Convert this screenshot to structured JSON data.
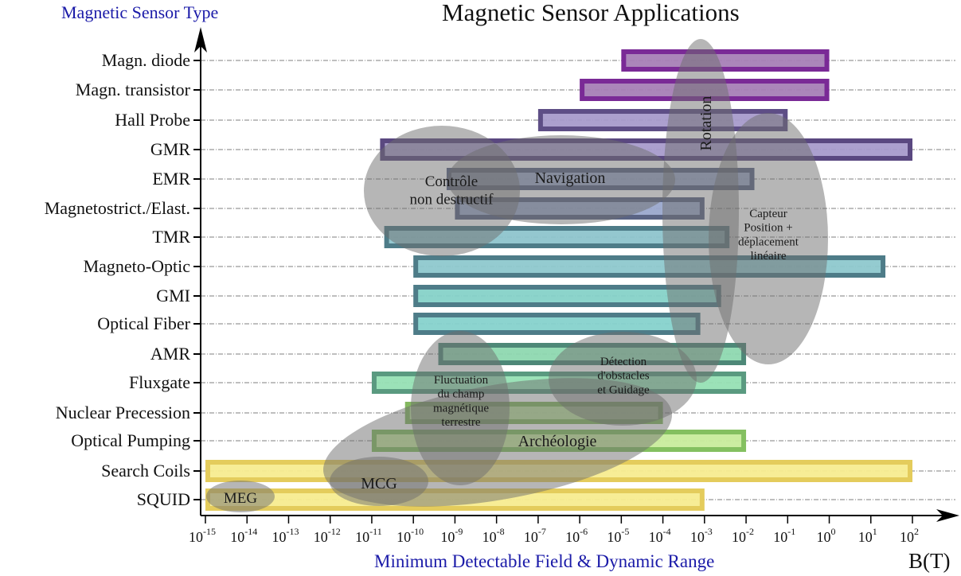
{
  "chart_data": {
    "type": "bar",
    "subtype": "floating-range-horizontal-log",
    "title": "Magnetic Sensor Applications",
    "ylabel": "Magnetic Sensor Type",
    "xlabel": "Minimum Detectable Field & Dynamic Range",
    "x_unit": "B(T)",
    "x_scale": "log10",
    "xlim_exponent": [
      -15,
      2
    ],
    "x_tick_exponents": [
      -15,
      -14,
      -13,
      -12,
      -11,
      -10,
      -9,
      -8,
      -7,
      -6,
      -5,
      -4,
      -3,
      -2,
      -1,
      0,
      1,
      2
    ],
    "grid": "horizontal dash-dot lines at each sensor row",
    "categories": [
      "Magn. diode",
      "Magn. transistor",
      "Hall Probe",
      "GMR",
      "EMR",
      "Magnetostrict./Elast.",
      "TMR",
      "Magneto-Optic",
      "GMI",
      "Optical Fiber",
      "AMR",
      "Fluxgate",
      "Nuclear Precession",
      "Optical Pumping",
      "Search Coils",
      "SQUID"
    ],
    "series": [
      {
        "name": "Magn. diode",
        "range_log10": [
          -5,
          0
        ],
        "fill": "#a67fb6",
        "stroke": "#7a2a96"
      },
      {
        "name": "Magn. transistor",
        "range_log10": [
          -6,
          0
        ],
        "fill": "#a67fb6",
        "stroke": "#7a2a96"
      },
      {
        "name": "Hall Probe",
        "range_log10": [
          -7,
          -1
        ],
        "fill": "#a89bcb",
        "stroke": "#5e4e86"
      },
      {
        "name": "GMR",
        "range_log10": [
          -10.8,
          2
        ],
        "fill": "#a89bcb",
        "stroke": "#5a4880"
      },
      {
        "name": "EMR",
        "range_log10": [
          -9.2,
          -1.8
        ],
        "fill": "#9aa6c8",
        "stroke": "#5a6484"
      },
      {
        "name": "Magnetostrict./Elast.",
        "range_log10": [
          -9,
          -3
        ],
        "fill": "#9aa8cc",
        "stroke": "#5a6484"
      },
      {
        "name": "TMR",
        "range_log10": [
          -10.7,
          -2.4
        ],
        "fill": "#8ec4cc",
        "stroke": "#4e7c88"
      },
      {
        "name": "Magneto-Optic",
        "range_log10": [
          -10,
          1.35
        ],
        "fill": "#8ec8ce",
        "stroke": "#4e7c88"
      },
      {
        "name": "GMI",
        "range_log10": [
          -10,
          -2.6
        ],
        "fill": "#86d2c8",
        "stroke": "#4e7c88"
      },
      {
        "name": "Optical Fiber",
        "range_log10": [
          -10,
          -3.1
        ],
        "fill": "#86d2cc",
        "stroke": "#4e7c88"
      },
      {
        "name": "AMR",
        "range_log10": [
          -9.4,
          -2
        ],
        "fill": "#8ed8b0",
        "stroke": "#4e8878"
      },
      {
        "name": "Fluxgate",
        "range_log10": [
          -11,
          -2
        ],
        "fill": "#96e0b4",
        "stroke": "#5a9a80"
      },
      {
        "name": "Nuclear Precession",
        "range_log10": [
          -10.2,
          -4
        ],
        "fill": "#bce29c",
        "stroke": "#84b860"
      },
      {
        "name": "Optical Pumping",
        "range_log10": [
          -11,
          -2
        ],
        "fill": "#c8ec9c",
        "stroke": "#84c060"
      },
      {
        "name": "Search Coils",
        "range_log10": [
          -15,
          2
        ],
        "fill": "#f7ec90",
        "stroke": "#e4cc5c"
      },
      {
        "name": "SQUID",
        "range_log10": [
          -15,
          -3
        ],
        "fill": "#f7ec90",
        "stroke": "#e4cc5c"
      }
    ],
    "annotations": [
      {
        "label": "Rotation",
        "rotated": true
      },
      {
        "label": "Contrôle non destructif"
      },
      {
        "label": "Navigation"
      },
      {
        "label": "Capteur Position + déplacement linéaire"
      },
      {
        "label": "Fluctuation du champ magnétique terrestre"
      },
      {
        "label": "Détection d'obstacles et Guidage"
      },
      {
        "label": "Archéologie"
      },
      {
        "label": "MCG"
      },
      {
        "label": "MEG"
      }
    ]
  },
  "text": {
    "title": "Magnetic Sensor Applications",
    "ylabel": "Magnetic Sensor Type",
    "xlabel": "Minimum Detectable Field & Dynamic Range",
    "unit": "B(T)"
  }
}
